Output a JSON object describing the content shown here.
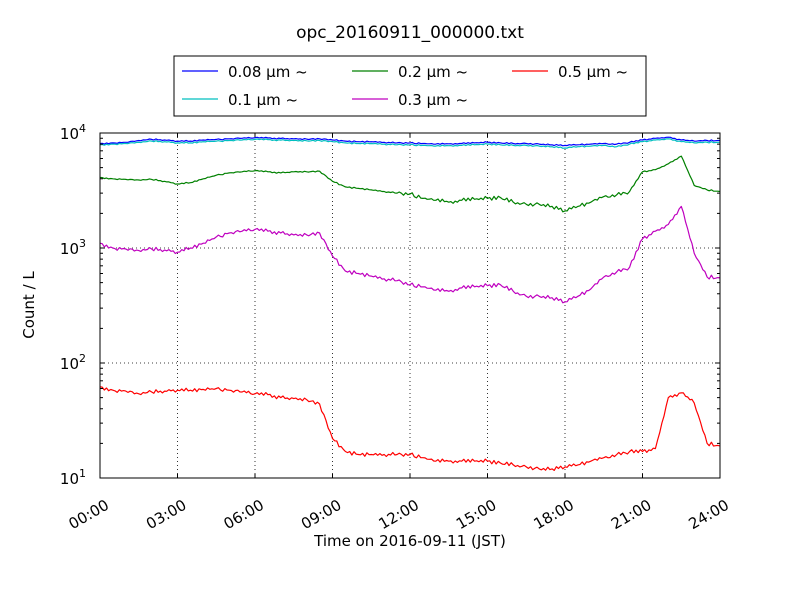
{
  "chart_data": {
    "type": "line",
    "title": "opc_20160911_000000.txt",
    "xlabel": "Time on 2016-09-11 (JST)",
    "ylabel": "Count / L",
    "x_tick_labels": [
      "00:00",
      "03:00",
      "06:00",
      "09:00",
      "12:00",
      "15:00",
      "18:00",
      "21:00",
      "24:00"
    ],
    "x_ticks_hours": [
      0,
      3,
      6,
      9,
      12,
      15,
      18,
      21,
      24
    ],
    "xlim_hours": [
      0,
      24
    ],
    "ylim": [
      10,
      10000
    ],
    "y_scale": "log",
    "y_ticks": [
      {
        "value": 10,
        "base": "10",
        "exp": "1"
      },
      {
        "value": 100,
        "base": "10",
        "exp": "2"
      },
      {
        "value": 1000,
        "base": "10",
        "exp": "3"
      },
      {
        "value": 10000,
        "base": "10",
        "exp": "4"
      }
    ],
    "grid": true,
    "legend_position": "top-center",
    "x_hours": [
      0,
      0.5,
      1,
      1.5,
      2,
      2.5,
      3,
      3.5,
      4,
      4.5,
      5,
      5.5,
      6,
      6.5,
      7,
      7.5,
      8,
      8.5,
      9,
      9.5,
      10,
      10.5,
      11,
      11.5,
      12,
      12.5,
      13,
      13.5,
      14,
      14.5,
      15,
      15.5,
      16,
      16.5,
      17,
      17.5,
      18,
      18.5,
      19,
      19.5,
      20,
      20.5,
      21,
      21.5,
      22,
      22.5,
      23,
      23.5,
      24
    ],
    "series": [
      {
        "name": "0.08 μm ~",
        "color": "#0000ff",
        "values": [
          8100,
          8200,
          8300,
          8600,
          8800,
          8700,
          8500,
          8500,
          8700,
          8800,
          8900,
          9000,
          9100,
          9050,
          8950,
          8900,
          8850,
          8900,
          8700,
          8500,
          8400,
          8400,
          8300,
          8200,
          8200,
          8100,
          8000,
          8050,
          8100,
          8200,
          8300,
          8200,
          8100,
          8100,
          8000,
          7900,
          7800,
          7900,
          8000,
          8100,
          8000,
          8300,
          8700,
          9000,
          9200,
          8700,
          8500,
          8600,
          8600
        ]
      },
      {
        "name": "0.1 μm ~",
        "color": "#00bfbf",
        "values": [
          7900,
          8000,
          8100,
          8300,
          8500,
          8400,
          8200,
          8200,
          8400,
          8500,
          8600,
          8700,
          8800,
          8750,
          8650,
          8600,
          8550,
          8600,
          8400,
          8200,
          8100,
          8100,
          8000,
          7900,
          7900,
          7800,
          7700,
          7750,
          7800,
          7900,
          8000,
          7900,
          7800,
          7800,
          7700,
          7600,
          7400,
          7600,
          7700,
          7800,
          7600,
          8000,
          8400,
          8700,
          8900,
          8400,
          8200,
          8300,
          8300
        ]
      },
      {
        "name": "0.2 μm ~",
        "color": "#008000",
        "values": [
          4100,
          4000,
          3950,
          3900,
          3950,
          3800,
          3600,
          3700,
          4000,
          4300,
          4500,
          4600,
          4700,
          4600,
          4500,
          4600,
          4600,
          4650,
          3800,
          3400,
          3300,
          3200,
          3100,
          3000,
          2950,
          2700,
          2600,
          2500,
          2600,
          2650,
          2700,
          2750,
          2500,
          2400,
          2400,
          2300,
          2100,
          2300,
          2500,
          2800,
          2900,
          3100,
          4600,
          4800,
          5400,
          6300,
          3500,
          3200,
          3100
        ]
      },
      {
        "name": "0.3 μm ~",
        "color": "#bf00bf",
        "values": [
          1100,
          1000,
          980,
          950,
          980,
          960,
          920,
          1000,
          1100,
          1250,
          1350,
          1400,
          1450,
          1400,
          1350,
          1300,
          1300,
          1350,
          850,
          630,
          600,
          570,
          540,
          520,
          480,
          460,
          430,
          420,
          450,
          460,
          470,
          480,
          420,
          380,
          380,
          370,
          340,
          380,
          440,
          560,
          620,
          680,
          1200,
          1400,
          1600,
          2300,
          900,
          560,
          550
        ]
      },
      {
        "name": "0.5 μm ~",
        "color": "#ff0000",
        "values": [
          62,
          58,
          57,
          54,
          56,
          57,
          58,
          58,
          59,
          60,
          58,
          56,
          54,
          53,
          50,
          49,
          48,
          44,
          22,
          17,
          16,
          16,
          16,
          16,
          16,
          15,
          14,
          14,
          14,
          14,
          14,
          13.5,
          13,
          12.5,
          12,
          12,
          12.5,
          13,
          14,
          15,
          16,
          17,
          17,
          18,
          50,
          55,
          45,
          20,
          19
        ]
      }
    ]
  }
}
